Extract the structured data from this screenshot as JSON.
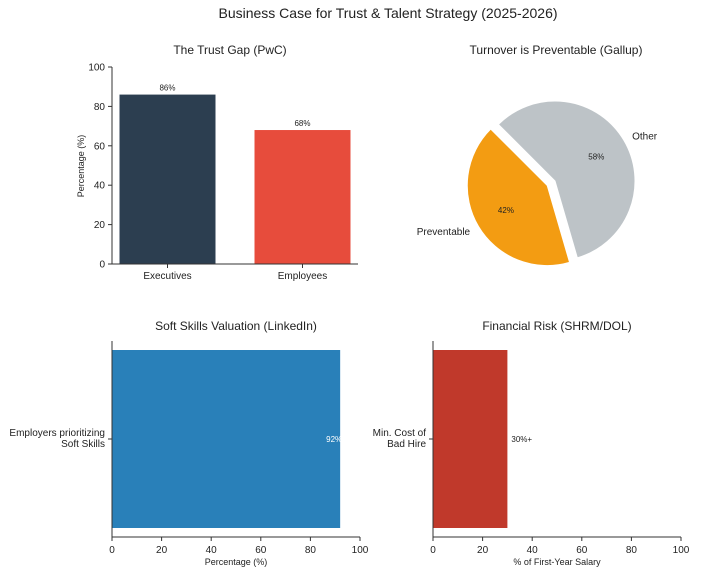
{
  "figure": {
    "title": "Business Case for Trust & Talent Strategy (2025-2026)"
  },
  "chart_data": [
    {
      "type": "bar",
      "title": "The Trust Gap (PwC)",
      "categories": [
        "Executives",
        "Employees"
      ],
      "values": [
        86,
        68
      ],
      "data_labels": [
        "86%",
        "68%"
      ],
      "colors": [
        "#2c3e50",
        "#e74c3c"
      ],
      "xlabel": "",
      "ylabel": "Percentage (%)",
      "ylim": [
        0,
        100
      ],
      "yticks": [
        "0",
        "20",
        "40",
        "60",
        "80",
        "100"
      ]
    },
    {
      "type": "pie",
      "title": "Turnover is Preventable (Gallup)",
      "labels": [
        "Preventable",
        "Other"
      ],
      "values": [
        42,
        58
      ],
      "data_labels": [
        "42%",
        "58%"
      ],
      "colors": [
        "#f39c12",
        "#bdc3c7"
      ]
    },
    {
      "type": "bar",
      "orientation": "horizontal",
      "title": "Soft Skills Valuation (LinkedIn)",
      "categories": [
        "Employers prioritizing\nSoft Skills"
      ],
      "category_lines": [
        "Employers prioritizing",
        "Soft Skills"
      ],
      "values": [
        92
      ],
      "data_labels": [
        "92%"
      ],
      "colors": [
        "#2980b9"
      ],
      "xlabel": "Percentage (%)",
      "xlim": [
        0,
        100
      ],
      "xticks": [
        "0",
        "20",
        "40",
        "60",
        "80",
        "100"
      ]
    },
    {
      "type": "bar",
      "orientation": "horizontal",
      "title": "Financial Risk (SHRM/DOL)",
      "categories": [
        "Min. Cost of\nBad Hire"
      ],
      "category_lines": [
        "Min. Cost of",
        "Bad Hire"
      ],
      "values": [
        30
      ],
      "data_labels": [
        "30%+"
      ],
      "colors": [
        "#c0392b"
      ],
      "xlabel": "% of First-Year Salary",
      "xlim": [
        0,
        100
      ],
      "xticks": [
        "0",
        "20",
        "40",
        "60",
        "80",
        "100"
      ]
    }
  ]
}
